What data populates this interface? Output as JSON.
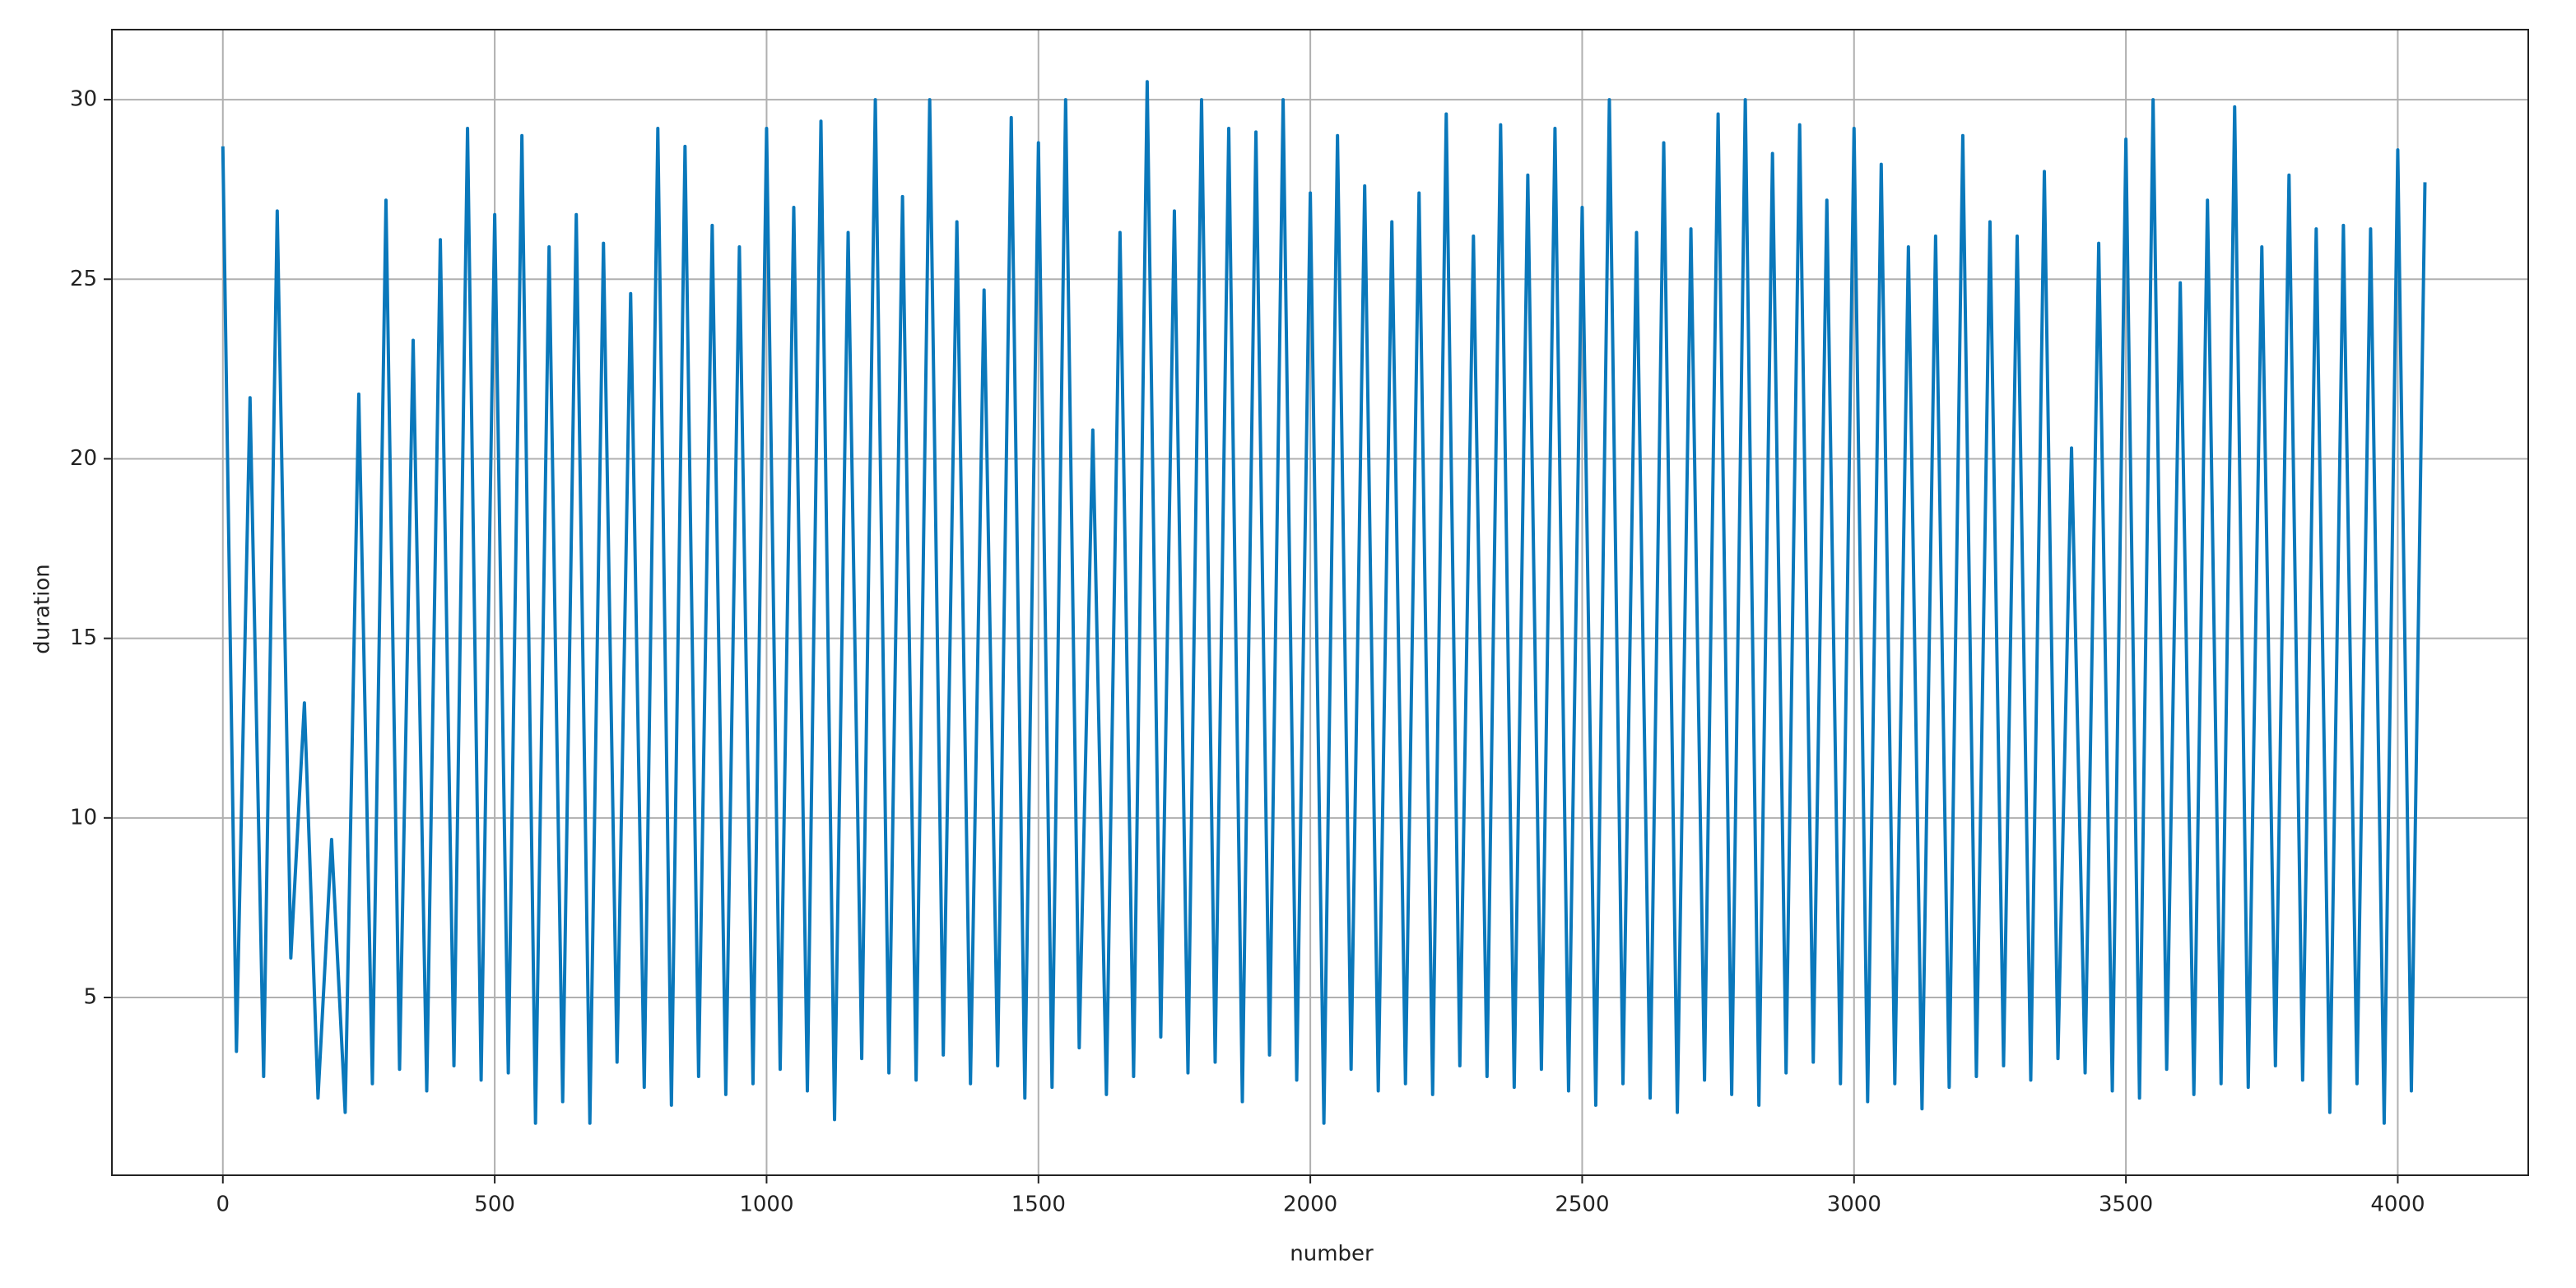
{
  "chart_data": {
    "type": "line",
    "xlabel": "number",
    "ylabel": "duration",
    "x": [
      0,
      25,
      50,
      75,
      100,
      125,
      150,
      175,
      200,
      225,
      250,
      275,
      300,
      325,
      350,
      375,
      400,
      425,
      450,
      475,
      500,
      525,
      550,
      575,
      600,
      625,
      650,
      675,
      700,
      725,
      750,
      775,
      800,
      825,
      850,
      875,
      900,
      925,
      950,
      975,
      1000,
      1025,
      1050,
      1075,
      1100,
      1125,
      1150,
      1175,
      1200,
      1225,
      1250,
      1275,
      1300,
      1325,
      1350,
      1375,
      1400,
      1425,
      1450,
      1475,
      1500,
      1525,
      1550,
      1575,
      1600,
      1625,
      1650,
      1675,
      1700,
      1725,
      1750,
      1775,
      1800,
      1825,
      1850,
      1875,
      1900,
      1925,
      1950,
      1975,
      2000,
      2025,
      2050,
      2075,
      2100,
      2125,
      2150,
      2175,
      2200,
      2225,
      2250,
      2275,
      2300,
      2325,
      2350,
      2375,
      2400,
      2425,
      2450,
      2475,
      2500,
      2525,
      2550,
      2575,
      2600,
      2625,
      2650,
      2675,
      2700,
      2725,
      2750,
      2775,
      2800,
      2825,
      2850,
      2875,
      2900,
      2925,
      2950,
      2975,
      3000,
      3025,
      3050,
      3075,
      3100,
      3125,
      3150,
      3175,
      3200,
      3225,
      3250,
      3275,
      3300,
      3325,
      3350,
      3375,
      3400,
      3425,
      3450,
      3475,
      3500,
      3525,
      3550,
      3575,
      3600,
      3625,
      3650,
      3675,
      3700,
      3725,
      3750,
      3775,
      3800,
      3825,
      3850,
      3875,
      3900,
      3925,
      3950,
      3975,
      4000,
      4025,
      4050
    ],
    "series": [
      {
        "name": "duration",
        "color": "#0a78bb",
        "values": [
          28.7,
          3.5,
          21.7,
          2.8,
          26.9,
          6.1,
          13.2,
          2.2,
          9.4,
          1.8,
          21.8,
          2.6,
          27.2,
          3.0,
          23.3,
          2.4,
          26.1,
          3.1,
          29.2,
          2.7,
          26.8,
          2.9,
          29.0,
          1.5,
          25.9,
          2.1,
          26.8,
          1.5,
          26.0,
          3.2,
          24.6,
          2.5,
          29.2,
          2.0,
          28.7,
          2.8,
          26.5,
          2.3,
          25.9,
          2.6,
          29.2,
          3.0,
          27.0,
          2.4,
          29.4,
          1.6,
          26.3,
          3.3,
          30.0,
          2.9,
          27.3,
          2.7,
          30.0,
          3.4,
          26.6,
          2.6,
          24.7,
          3.1,
          29.5,
          2.2,
          28.8,
          2.5,
          30.0,
          3.6,
          20.8,
          2.3,
          26.3,
          2.8,
          30.5,
          3.9,
          26.9,
          2.9,
          30.0,
          3.2,
          29.2,
          2.1,
          29.1,
          3.4,
          30.0,
          2.7,
          27.4,
          1.5,
          29.0,
          3.0,
          27.6,
          2.4,
          26.6,
          2.6,
          27.4,
          2.3,
          29.6,
          3.1,
          26.2,
          2.8,
          29.3,
          2.5,
          27.9,
          3.0,
          29.2,
          2.4,
          27.0,
          2.0,
          30.0,
          2.6,
          26.3,
          2.2,
          28.8,
          1.8,
          26.4,
          2.7,
          29.6,
          2.3,
          30.0,
          2.0,
          28.5,
          2.9,
          29.3,
          3.2,
          27.2,
          2.6,
          29.2,
          2.1,
          28.2,
          2.6,
          25.9,
          1.9,
          26.2,
          2.5,
          29.0,
          2.8,
          26.6,
          3.1,
          26.2,
          2.7,
          28.0,
          3.3,
          20.3,
          2.9,
          26.0,
          2.4,
          28.9,
          2.2,
          30.0,
          3.0,
          24.9,
          2.3,
          27.2,
          2.6,
          29.8,
          2.5,
          25.9,
          3.1,
          27.9,
          2.7,
          26.4,
          1.8,
          26.5,
          2.6,
          26.4,
          1.5,
          28.6,
          2.4,
          27.7
        ]
      }
    ],
    "xlim": [
      -204,
      4240
    ],
    "ylim": [
      0.05,
      31.95
    ],
    "xticks": [
      0,
      500,
      1000,
      1500,
      2000,
      2500,
      3000,
      3500,
      4000
    ],
    "yticks": [
      5,
      10,
      15,
      20,
      25,
      30
    ],
    "grid": true
  }
}
